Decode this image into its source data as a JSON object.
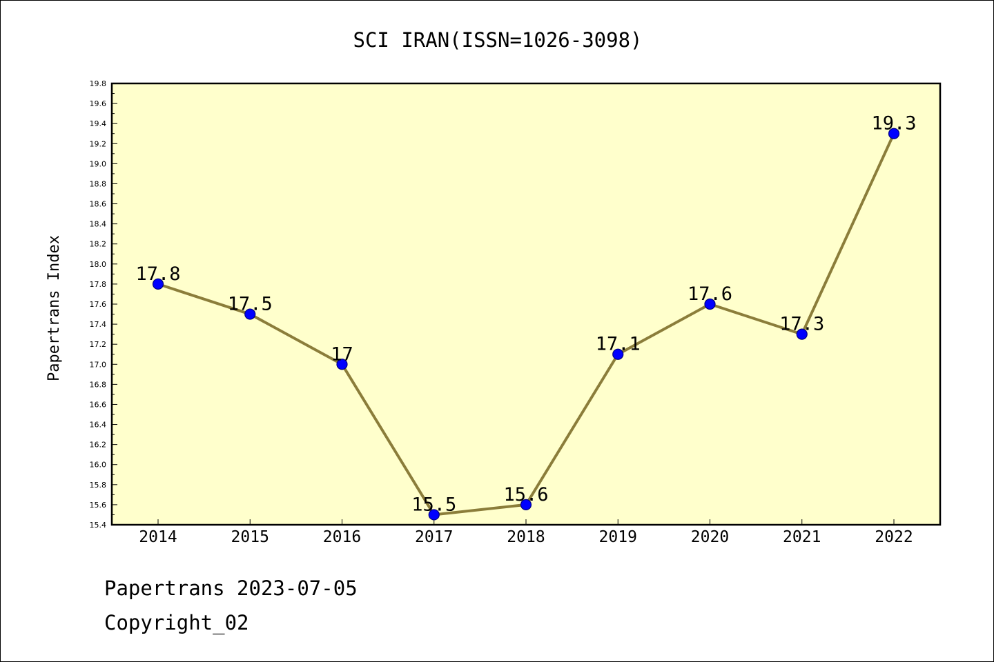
{
  "chart_data": {
    "type": "line",
    "title": "SCI IRAN(ISSN=1026-3098)",
    "xlabel": "",
    "ylabel": "Papertrans Index",
    "categories": [
      "2014",
      "2015",
      "2016",
      "2017",
      "2018",
      "2019",
      "2020",
      "2021",
      "2022"
    ],
    "values": [
      17.8,
      17.5,
      17.0,
      15.5,
      15.6,
      17.1,
      17.6,
      17.3,
      19.3
    ],
    "data_labels": [
      "17.8",
      "17.5",
      "17",
      "15.5",
      "15.6",
      "17.1",
      "17.6",
      "17.3",
      "19.3"
    ],
    "ylim": [
      15.4,
      19.8
    ],
    "yticks": [
      "15.4",
      "15.6",
      "15.8",
      "16.0",
      "16.2",
      "16.4",
      "16.6",
      "16.8",
      "17.0",
      "17.2",
      "17.4",
      "17.6",
      "17.8",
      "18.0",
      "18.2",
      "18.4",
      "18.6",
      "18.8",
      "19.0",
      "19.2",
      "19.4",
      "19.6",
      "19.8"
    ],
    "grid": false,
    "legend": "none",
    "colors": {
      "plot_background": "#ffffcc",
      "line": "#8b7d3a",
      "marker_fill": "#0000ff",
      "marker_edge": "#000080",
      "axes": "#000000"
    }
  },
  "footer": {
    "date_line": "Papertrans 2023-07-05",
    "copyright_line": "Copyright_02"
  }
}
